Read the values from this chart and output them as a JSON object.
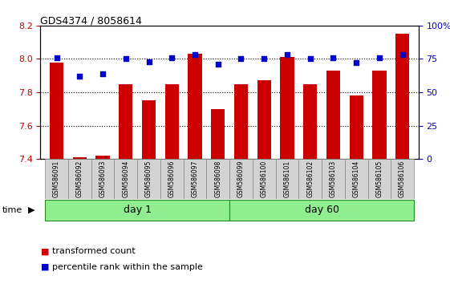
{
  "title": "GDS4374 / 8058614",
  "samples": [
    "GSM586091",
    "GSM586092",
    "GSM586093",
    "GSM586094",
    "GSM586095",
    "GSM586096",
    "GSM586097",
    "GSM586098",
    "GSM586099",
    "GSM586100",
    "GSM586101",
    "GSM586102",
    "GSM586103",
    "GSM586104",
    "GSM586105",
    "GSM586106"
  ],
  "bar_values": [
    7.98,
    7.41,
    7.42,
    7.85,
    7.75,
    7.85,
    8.03,
    7.7,
    7.85,
    7.87,
    8.01,
    7.85,
    7.93,
    7.78,
    7.93,
    8.15
  ],
  "dot_values": [
    76,
    62,
    64,
    75,
    73,
    76,
    78,
    71,
    75,
    75,
    78,
    75,
    76,
    72,
    76,
    78
  ],
  "bar_color": "#cc0000",
  "dot_color": "#0000cc",
  "ylim_left": [
    7.4,
    8.2
  ],
  "ylim_right": [
    0,
    100
  ],
  "yticks_left": [
    7.4,
    7.6,
    7.8,
    8.0,
    8.2
  ],
  "yticks_right": [
    0,
    25,
    50,
    75,
    100
  ],
  "ytick_labels_right": [
    "0",
    "25",
    "50",
    "75",
    "100%"
  ],
  "n_day1": 8,
  "n_day60": 8,
  "day1_label": "day 1",
  "day60_label": "day 60",
  "time_label": "time",
  "legend_bar_label": "transformed count",
  "legend_dot_label": "percentile rank within the sample",
  "grid_lines": [
    7.6,
    7.8,
    8.0
  ],
  "bar_width": 0.6,
  "day_color": "#90ee90",
  "day_border_color": "#228B22",
  "xtick_bg": "#d3d3d3",
  "xtick_border": "#888888"
}
